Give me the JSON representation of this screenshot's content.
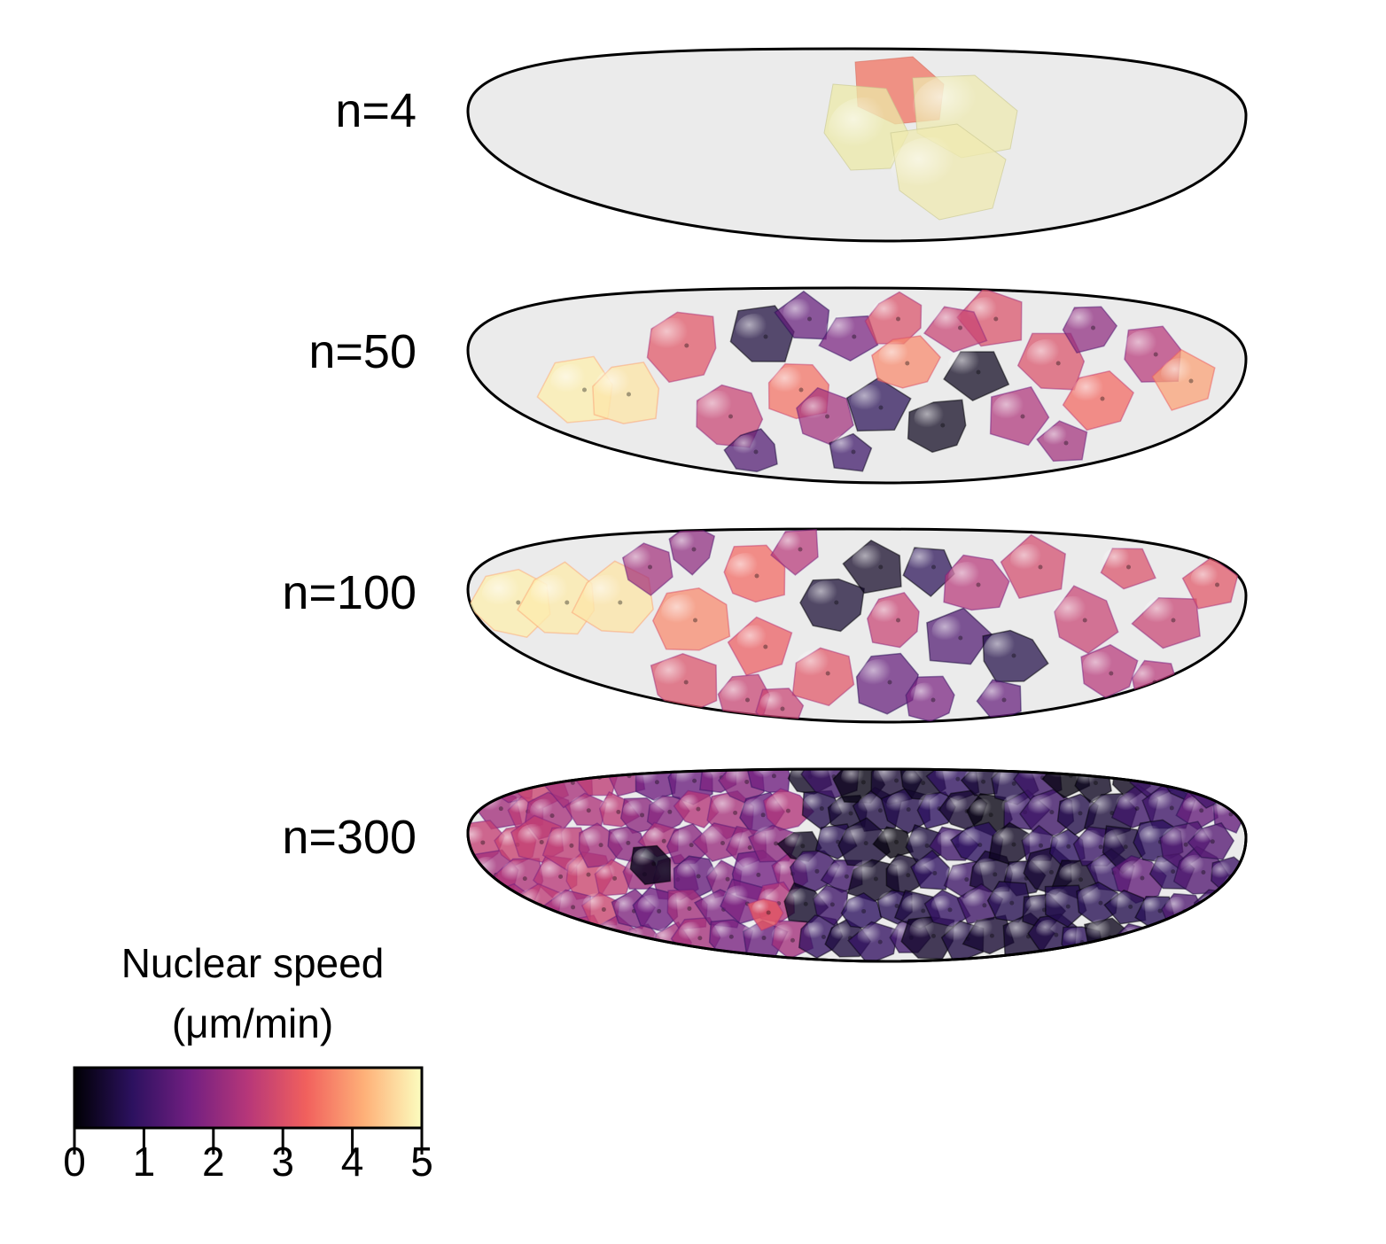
{
  "rows": [
    {
      "label": "n=4"
    },
    {
      "label": "n=50"
    },
    {
      "label": "n=100"
    },
    {
      "label": "n=300"
    }
  ],
  "colorbar": {
    "title_line1": "Nuclear speed",
    "title_line2": "(μm/min)",
    "ticks": [
      "0",
      "1",
      "2",
      "3",
      "4",
      "5"
    ],
    "range": [
      0,
      5
    ],
    "colormap_stops": [
      "#000004",
      "#2c115f",
      "#721f81",
      "#b73779",
      "#f1605d",
      "#feb078",
      "#fcfdbf"
    ]
  }
}
